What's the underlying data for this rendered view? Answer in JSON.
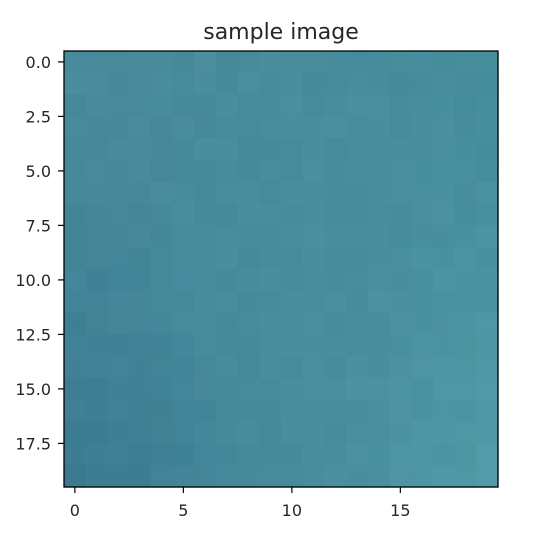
{
  "chart_data": {
    "type": "heatmap",
    "title": "sample image",
    "xlabel": "",
    "ylabel": "",
    "rows": 20,
    "cols": 20,
    "xlim": [
      -0.5,
      19.5
    ],
    "ylim": [
      19.5,
      -0.5
    ],
    "x_ticks": [
      0,
      5,
      10,
      15
    ],
    "x_tick_labels": [
      "0",
      "5",
      "10",
      "15"
    ],
    "y_ticks": [
      0.0,
      2.5,
      5.0,
      7.5,
      10.0,
      12.5,
      15.0,
      17.5
    ],
    "y_tick_labels": [
      "0.0",
      "2.5",
      "5.0",
      "7.5",
      "10.0",
      "12.5",
      "15.0",
      "17.5"
    ],
    "grid": false,
    "corner_colors": {
      "top_left": "#4a8c9d",
      "top_right": "#458c9b",
      "bottom_left": "#3b7a90",
      "bottom_right": "#519aa7",
      "center": "#4990a2"
    },
    "axis_color": "#000000"
  }
}
